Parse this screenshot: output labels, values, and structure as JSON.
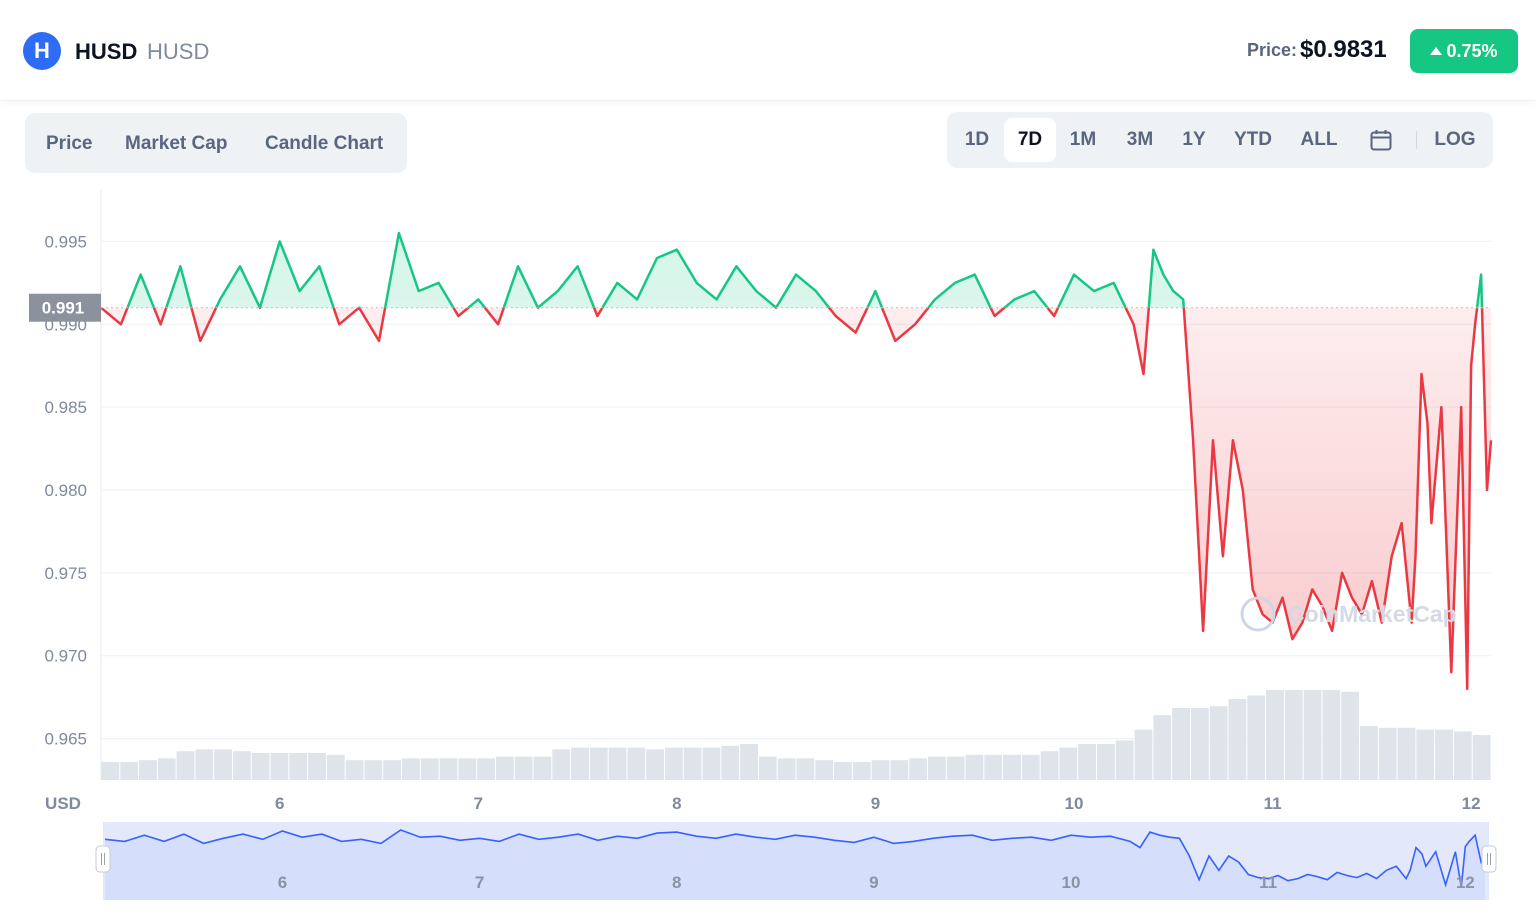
{
  "header": {
    "logo_glyph": "H",
    "coin_name": "HUSD",
    "coin_symbol": "HUSD",
    "price_label": "Price:",
    "price_value": "$0.9831",
    "change": "0.75%",
    "change_color": "#16c784"
  },
  "tabs": [
    "Price",
    "Market Cap",
    "Candle Chart"
  ],
  "ranges": {
    "buttons": [
      "1D",
      "7D",
      "1M",
      "3M",
      "1Y",
      "YTD",
      "ALL"
    ],
    "active": "7D",
    "calendar_icon": "calendar-icon",
    "log_label": "LOG"
  },
  "chart_data": {
    "type": "line",
    "ylabel": "USD",
    "yticks": [
      "0.995",
      "0.990",
      "0.985",
      "0.980",
      "0.975",
      "0.970",
      "0.965"
    ],
    "ylim": [
      0.9625,
      0.9975
    ],
    "xticks": [
      "6",
      "7",
      "8",
      "9",
      "10",
      "11",
      "12"
    ],
    "xlim": [
      5.1,
      12.1
    ],
    "baseline": 0.991,
    "baseline_label": "0.991",
    "above_color": "#16c784",
    "below_color": "#ea3943",
    "grid": true,
    "watermark": "CoinMarketCap",
    "series": [
      {
        "x": [
          5.1,
          5.2,
          5.3,
          5.4,
          5.5,
          5.6,
          5.7,
          5.8,
          5.9,
          6.0,
          6.1,
          6.2,
          6.3,
          6.4,
          6.5,
          6.6,
          6.7,
          6.8,
          6.9,
          7.0,
          7.1,
          7.2,
          7.3,
          7.4,
          7.5,
          7.6,
          7.7,
          7.8,
          7.9,
          8.0,
          8.1,
          8.2,
          8.3,
          8.4,
          8.5,
          8.6,
          8.7,
          8.8,
          8.9,
          9.0,
          9.1,
          9.2,
          9.3,
          9.4,
          9.5,
          9.6,
          9.7,
          9.8,
          9.9,
          10.0,
          10.1,
          10.2,
          10.3,
          10.35,
          10.4,
          10.45,
          10.5,
          10.55,
          10.6,
          10.65,
          10.7,
          10.75,
          10.8,
          10.85,
          10.9,
          10.95,
          11.0,
          11.05,
          11.1,
          11.15,
          11.2,
          11.25,
          11.3,
          11.35,
          11.4,
          11.45,
          11.5,
          11.55,
          11.6,
          11.65,
          11.7,
          11.72,
          11.75,
          11.78,
          11.8,
          11.85,
          11.9,
          11.95,
          11.98,
          12.0,
          12.02,
          12.05,
          12.08,
          12.1
        ],
        "y": [
          0.991,
          0.99,
          0.993,
          0.99,
          0.9935,
          0.989,
          0.9915,
          0.9935,
          0.991,
          0.995,
          0.992,
          0.9935,
          0.99,
          0.991,
          0.989,
          0.9955,
          0.992,
          0.9925,
          0.9905,
          0.9915,
          0.99,
          0.9935,
          0.991,
          0.992,
          0.9935,
          0.9905,
          0.9925,
          0.9915,
          0.994,
          0.9945,
          0.9925,
          0.9915,
          0.9935,
          0.992,
          0.991,
          0.993,
          0.992,
          0.9905,
          0.9895,
          0.992,
          0.989,
          0.99,
          0.9915,
          0.9925,
          0.993,
          0.9905,
          0.9915,
          0.992,
          0.9905,
          0.993,
          0.992,
          0.9925,
          0.99,
          0.987,
          0.9945,
          0.993,
          0.992,
          0.9915,
          0.983,
          0.9715,
          0.983,
          0.976,
          0.983,
          0.98,
          0.974,
          0.9725,
          0.972,
          0.9735,
          0.971,
          0.972,
          0.974,
          0.973,
          0.9715,
          0.975,
          0.9735,
          0.9725,
          0.9745,
          0.972,
          0.976,
          0.978,
          0.972,
          0.976,
          0.987,
          0.984,
          0.978,
          0.985,
          0.969,
          0.985,
          0.968,
          0.9875,
          0.99,
          0.993,
          0.98,
          0.983
        ]
      }
    ],
    "volume_note": "volume bars at bottom (relative heights)",
    "volume": [
      0.1,
      0.1,
      0.11,
      0.12,
      0.16,
      0.17,
      0.17,
      0.16,
      0.15,
      0.15,
      0.15,
      0.15,
      0.14,
      0.11,
      0.11,
      0.11,
      0.12,
      0.12,
      0.12,
      0.12,
      0.12,
      0.13,
      0.13,
      0.13,
      0.17,
      0.18,
      0.18,
      0.18,
      0.18,
      0.17,
      0.18,
      0.18,
      0.18,
      0.19,
      0.2,
      0.13,
      0.12,
      0.12,
      0.11,
      0.1,
      0.1,
      0.11,
      0.11,
      0.12,
      0.13,
      0.13,
      0.14,
      0.14,
      0.14,
      0.14,
      0.16,
      0.18,
      0.2,
      0.2,
      0.22,
      0.28,
      0.36,
      0.4,
      0.4,
      0.41,
      0.45,
      0.47,
      0.5,
      0.5,
      0.5,
      0.5,
      0.49,
      0.3,
      0.29,
      0.29,
      0.28,
      0.28,
      0.27,
      0.25
    ],
    "navigator_xticks": [
      "6",
      "7",
      "8",
      "9",
      "10",
      "11",
      "12"
    ]
  }
}
